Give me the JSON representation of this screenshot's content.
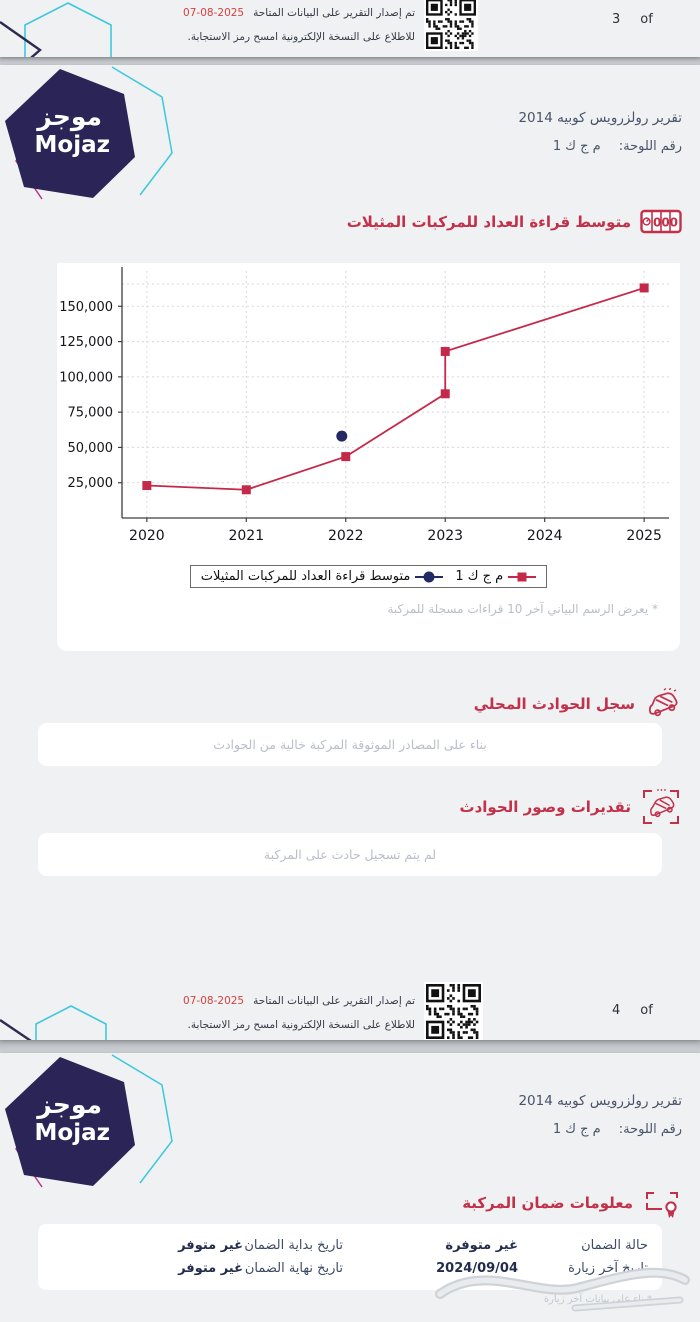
{
  "brand": {
    "logo_ar": "موجز",
    "logo_en": "Mojaz"
  },
  "colors": {
    "brand_red": "#c2304a",
    "chart_red": "#c5294a",
    "navy": "#232a63",
    "date_red": "#d8413d",
    "logo_indigo": "#2b2456",
    "cyan": "#3cc8de",
    "magenta": "#b8348c"
  },
  "footer": {
    "issued_text": "تم إصدار التقرير على البيانات المتاحة",
    "issued_date": "2025-08-07",
    "scan_text": "للاطلاع على النسخة الإلكترونية امسح رمز الاستجابة.",
    "of_label": "of",
    "page3_number": "3",
    "page4_number": "4"
  },
  "header": {
    "title": "تقرير رولزرويس كوبيه 2014",
    "plate_label": "رقم اللوحة:",
    "plate_value": "م ج ك 1"
  },
  "icons": {
    "odometer_digits": "000"
  },
  "odometer_section": {
    "title": "متوسط قراءة العداد للمركبات المثيلات",
    "footnote": "* يعرض الرسم البياني آخر 10 قراءات مسجلة للمركبة"
  },
  "accident_record": {
    "title": "سجل الحوادث المحلي",
    "body": "بناء على المصادر الموثوقة المركبة خالية من الحوادث"
  },
  "accident_estimates": {
    "title": "تقديرات وصور الحوادث",
    "body": "لم يتم تسجيل حادث على المركبة"
  },
  "warranty": {
    "title": "معلومات ضمان المركبة",
    "rows": [
      [
        {
          "label": "حالة الضمان",
          "value": "غير متوفرة"
        },
        {
          "label": "تاريخ بداية الضمان",
          "value": "غير متوفر"
        }
      ],
      [
        {
          "label": "تاريخ آخر زيارة",
          "value": "2024/09/04"
        },
        {
          "label": "تاريخ نهاية الضمان",
          "value": "غير متوفر"
        }
      ]
    ],
    "footnote": "*بناء على بيانات آخر زيارة"
  },
  "chart_data": {
    "type": "line",
    "title": "",
    "xlabel": "",
    "ylabel": "",
    "xlim": [
      2019.75,
      2025.25
    ],
    "ylim": [
      0,
      175000
    ],
    "grid": true,
    "xticks": [
      2020,
      2021,
      2022,
      2023,
      2024,
      2025
    ],
    "xtick_labels": [
      "2020",
      "2021",
      "2022",
      "2023",
      "2024",
      "2025"
    ],
    "yticks": [
      25000,
      50000,
      75000,
      100000,
      125000,
      150000
    ],
    "ytick_labels": [
      "25,000",
      "50,000",
      "75,000",
      "100,000",
      "125,000",
      "150,000"
    ],
    "series": [
      {
        "name": "م ج ك 1",
        "marker": "square",
        "color": "#c5294a",
        "points": [
          [
            2020,
            23000
          ],
          [
            2021,
            20000
          ],
          [
            2022,
            43500
          ],
          [
            2023,
            88000
          ],
          [
            2023,
            118000
          ],
          [
            2025,
            163000
          ]
        ]
      },
      {
        "name": "متوسط قراءة العداد للمركبات المثيلات",
        "marker": "circle",
        "color": "#232a63",
        "points": [
          [
            2021.96,
            58000
          ]
        ]
      }
    ],
    "legend": {
      "position": "bottom",
      "entries": [
        {
          "label": "م ج ك 1",
          "marker": "square",
          "color": "#c5294a"
        },
        {
          "label": "متوسط قراءة العداد للمركبات المثيلات",
          "marker": "circle",
          "color": "#232a63"
        }
      ]
    }
  }
}
